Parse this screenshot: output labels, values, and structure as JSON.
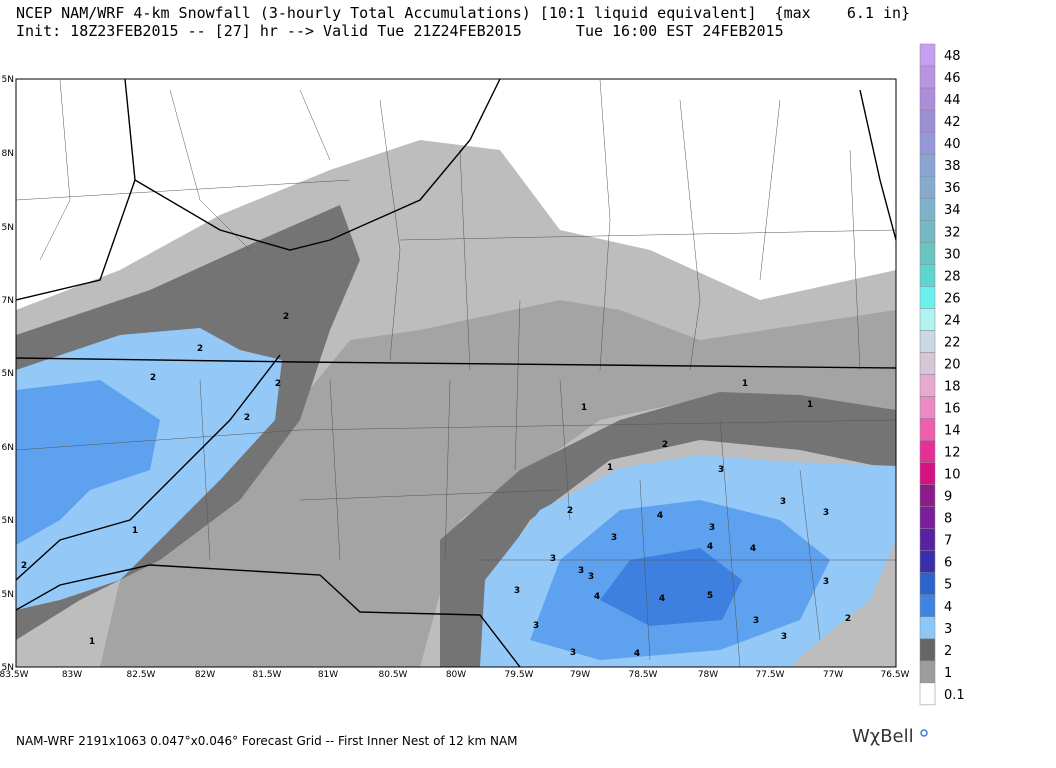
{
  "header": {
    "line1": "NCEP NAM/WRF 4-km Snowfall (3-hourly Total Accumulations) [10:1 liquid equivalent]  {max    6.1 in}",
    "line2": "Init: 18Z23FEB2015 -- [27] hr --> Valid Tue 21Z24FEB2015      Tue 16:00 EST 24FEB2015"
  },
  "map": {
    "lon_labels": [
      "83.5W",
      "83W",
      "82.5W",
      "82W",
      "81.5W",
      "81W",
      "80.5W",
      "80W",
      "79.5W",
      "79W",
      "78.5W",
      "78W",
      "77.5W",
      "77W",
      "76.5W"
    ],
    "lat_labels": [
      "5N",
      "8N",
      "5N",
      "7N",
      "5N",
      "6N",
      "5N",
      "5N",
      "5N"
    ],
    "contour_labels": [
      2,
      2,
      2,
      2,
      2,
      1,
      1,
      2,
      1,
      1,
      2,
      1,
      1,
      2,
      3,
      3,
      3,
      4,
      3,
      3,
      4,
      4,
      3,
      3,
      3,
      3,
      4,
      4,
      5,
      3,
      3,
      3,
      2,
      3,
      3,
      4
    ]
  },
  "colorbar": {
    "labels": [
      48,
      46,
      44,
      42,
      40,
      38,
      36,
      34,
      32,
      30,
      28,
      26,
      24,
      22,
      20,
      18,
      16,
      14,
      12,
      10,
      9,
      8,
      7,
      6,
      5,
      4,
      3,
      2,
      1,
      0.1
    ],
    "colors": [
      "#c79ff0",
      "#b994e6",
      "#ab8dda",
      "#9d8fd4",
      "#9598d8",
      "#8ca3d6",
      "#85abd0",
      "#7eb1ca",
      "#77b8c6",
      "#6cc4c2",
      "#5ed6cf",
      "#6cf0ee",
      "#b2f2f2",
      "#c9d9e4",
      "#d6c6d8",
      "#e6a9d0",
      "#ee88c6",
      "#ef5fb0",
      "#e62f98",
      "#d41380",
      "#8c1c8c",
      "#7a1e9c",
      "#5a20a4",
      "#3b2eaa",
      "#2e62cc",
      "#3f84e2",
      "#8ec6f6",
      "#666666",
      "#9c9c9c",
      "#ffffff"
    ]
  },
  "footer": {
    "text": "NAM-WRF 2191x1063 0.047°x0.046° Forecast Grid -- First Inner Nest of 12 km NAM",
    "logo": "WχBell"
  }
}
